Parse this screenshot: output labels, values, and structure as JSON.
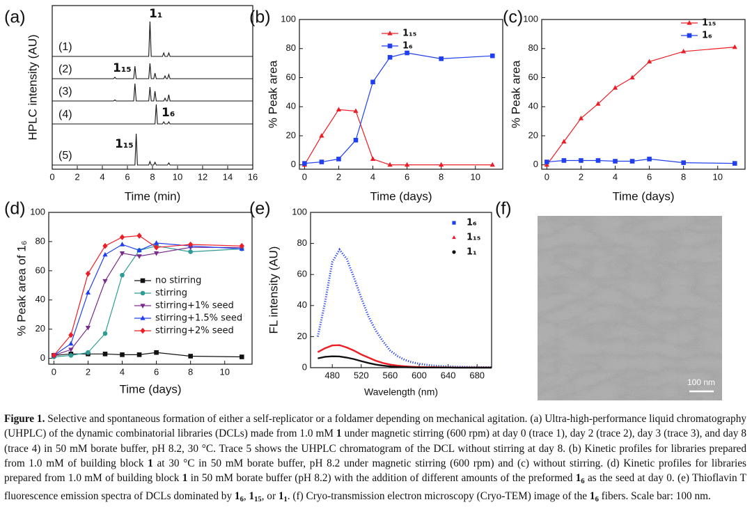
{
  "chart_data": [
    {
      "type": "line",
      "panel_label": "(a)",
      "xlabel": "Time (min)",
      "ylabel": "HPLC intensity (AU)",
      "xlim": [
        0,
        16
      ],
      "xticks": [
        0,
        2,
        4,
        6,
        8,
        10,
        12,
        14,
        16
      ],
      "series": [
        {
          "name": "(1)",
          "color": "#111111",
          "x": [
            0,
            7.7,
            7.8,
            7.9,
            8.8,
            8.9,
            9.0,
            9.2,
            9.3,
            9.4,
            16
          ],
          "values": [
            0,
            0,
            50,
            0,
            0,
            5,
            0,
            0,
            5,
            0,
            0
          ]
        },
        {
          "name": "(2)",
          "color": "#111111",
          "x": [
            0,
            4.9,
            5.0,
            5.1,
            6.5,
            6.6,
            6.7,
            7.7,
            7.8,
            7.9,
            8.1,
            8.2,
            8.3,
            8.9,
            9.0,
            9.1,
            9.2,
            9.3,
            9.4,
            16
          ],
          "values": [
            0,
            0,
            2,
            0,
            0,
            18,
            0,
            0,
            22,
            0,
            0,
            8,
            0,
            0,
            4,
            0,
            0,
            6,
            0,
            0
          ]
        },
        {
          "name": "(3)",
          "color": "#111111",
          "x": [
            0,
            4.9,
            5.0,
            5.1,
            6.5,
            6.6,
            6.7,
            7.7,
            7.8,
            7.9,
            8.1,
            8.2,
            8.3,
            8.9,
            9.0,
            9.1,
            9.2,
            9.3,
            9.4,
            16
          ],
          "values": [
            0,
            0,
            1.5,
            0,
            0,
            25,
            0,
            0,
            20,
            0,
            0,
            14,
            0,
            0,
            4,
            0,
            0,
            9,
            0,
            0
          ]
        },
        {
          "name": "(4)",
          "color": "#111111",
          "x": [
            0,
            8.2,
            8.3,
            8.4,
            8.8,
            8.9,
            9.0,
            9.2,
            9.3,
            9.4,
            16
          ],
          "values": [
            0,
            0,
            28,
            0,
            0,
            3,
            0,
            0,
            3,
            0,
            0
          ]
        },
        {
          "name": "(5)",
          "color": "#111111",
          "x": [
            0,
            6.6,
            6.7,
            6.8,
            7.7,
            7.8,
            7.9,
            8.1,
            8.2,
            8.3,
            9.2,
            9.3,
            9.4,
            16
          ],
          "values": [
            0,
            0,
            45,
            0,
            0,
            5,
            0,
            0,
            4,
            0,
            0,
            3,
            0,
            0
          ]
        }
      ],
      "annotations": [
        "1₁",
        "1₁₅",
        "1₆",
        "1₁₅"
      ]
    },
    {
      "type": "line",
      "panel_label": "(b)",
      "xlabel": "Time (days)",
      "ylabel": "% Peak area",
      "xlim": [
        -0.3,
        11.6
      ],
      "xticks": [
        0,
        2,
        4,
        6,
        8,
        10
      ],
      "ylim": [
        -3,
        100
      ],
      "yticks": [
        0,
        20,
        40,
        60,
        80,
        100
      ],
      "x": [
        0,
        1,
        2,
        3,
        4,
        5,
        6,
        8,
        11
      ],
      "series": [
        {
          "name": "1₁₅",
          "color": "#ee1c25",
          "marker": "triangle",
          "values": [
            0,
            20,
            38,
            37,
            4,
            0,
            0,
            0,
            0
          ]
        },
        {
          "name": "1₆",
          "color": "#1f3ff0",
          "marker": "square",
          "values": [
            1,
            2,
            4,
            17,
            57,
            74,
            77,
            73,
            75
          ]
        }
      ]
    },
    {
      "type": "line",
      "panel_label": "(c)",
      "xlabel": "Time (days)",
      "ylabel": "% Peak area",
      "xlim": [
        -0.3,
        11.6
      ],
      "xticks": [
        0,
        2,
        4,
        6,
        8,
        10
      ],
      "ylim": [
        -3,
        100
      ],
      "yticks": [
        0,
        20,
        40,
        60,
        80,
        100
      ],
      "x": [
        0,
        1,
        2,
        3,
        4,
        5,
        6,
        8,
        11
      ],
      "series": [
        {
          "name": "1₁₅",
          "color": "#ee1c25",
          "marker": "triangle",
          "values": [
            0,
            16,
            32,
            42,
            53,
            60,
            71,
            78,
            81
          ]
        },
        {
          "name": "1₆",
          "color": "#1f3ff0",
          "marker": "square",
          "values": [
            2,
            3,
            3,
            3,
            2.5,
            2.5,
            4,
            1.5,
            1
          ]
        }
      ]
    },
    {
      "type": "line",
      "panel_label": "(d)",
      "xlabel": "Time (days)",
      "ylabel": "% Peak area of 1₆",
      "xlim": [
        -0.3,
        11.6
      ],
      "xticks": [
        0,
        2,
        4,
        6,
        8,
        10
      ],
      "ylim": [
        -4,
        100
      ],
      "yticks": [
        0,
        20,
        40,
        60,
        80,
        100
      ],
      "x": [
        0,
        1,
        2,
        3,
        4,
        5,
        6,
        8,
        11
      ],
      "series": [
        {
          "name": "no stirring",
          "color": "#111111",
          "marker": "square",
          "values": [
            2,
            3,
            3,
            3,
            2.5,
            2.5,
            4,
            1.5,
            1
          ]
        },
        {
          "name": "stirring",
          "color": "#2e9c94",
          "marker": "circle",
          "values": [
            1,
            2,
            4,
            17,
            57,
            74,
            77,
            73,
            75
          ]
        },
        {
          "name": "stirring+1% seed",
          "color": "#7a2a8c",
          "marker": "triangle-down",
          "values": [
            2,
            6,
            21,
            53,
            72,
            70,
            72,
            76,
            76
          ]
        },
        {
          "name": "stirring+1.5% seed",
          "color": "#1f3ff0",
          "marker": "triangle",
          "values": [
            2,
            10,
            45,
            71,
            78,
            74,
            79,
            77,
            75
          ]
        },
        {
          "name": "stirring+2% seed",
          "color": "#ee1c25",
          "marker": "diamond",
          "values": [
            2,
            16,
            58,
            77,
            83,
            84,
            76,
            78,
            77
          ]
        }
      ]
    },
    {
      "type": "line",
      "panel_label": "(e)",
      "xlabel": "Wavelength (nm)",
      "ylabel": "FL intensity (AU)",
      "xlim": [
        450,
        700
      ],
      "xticks": [
        480,
        520,
        560,
        600,
        640,
        680
      ],
      "ylim": [
        0,
        100
      ],
      "yticks": [
        0,
        20,
        40,
        60,
        80,
        100
      ],
      "x": [
        460,
        470,
        480,
        490,
        500,
        510,
        520,
        530,
        540,
        550,
        560,
        570,
        580,
        590,
        600,
        610,
        620,
        630,
        640,
        650,
        660,
        670,
        680,
        690,
        700
      ],
      "series": [
        {
          "name": "1₆",
          "color": "#1f3ff0",
          "marker": "square",
          "line_style": "dotted",
          "values": [
            20,
            42,
            68,
            76,
            70,
            58,
            45,
            33,
            24,
            17,
            11,
            7.5,
            5,
            3.5,
            2.5,
            1.8,
            1.3,
            1,
            0.8,
            0.6,
            0.5,
            0.4,
            0.3,
            0.3,
            0.2
          ]
        },
        {
          "name": "1₁₅",
          "color": "#ee1c25",
          "marker": "triangle",
          "line_style": "solid",
          "values": [
            10,
            12.5,
            14.3,
            14.5,
            13,
            11,
            8.5,
            6.5,
            4.5,
            3,
            2,
            1.3,
            0.9,
            0.6,
            0.4,
            0.3,
            0.3,
            0.2,
            0.2,
            0.1,
            0.1,
            0.1,
            0.1,
            0.1,
            0.1
          ]
        },
        {
          "name": "1₁",
          "color": "#111111",
          "marker": "circle",
          "line_style": "solid",
          "values": [
            6,
            7,
            7.3,
            7.2,
            6.5,
            5.5,
            4.2,
            3,
            2,
            1.3,
            0.8,
            0.5,
            0.3,
            0.2,
            0.1,
            0.1,
            0.1,
            0.1,
            0.1,
            0,
            0,
            0,
            0,
            0,
            0
          ]
        }
      ]
    }
  ],
  "image": {
    "panel_label": "(f)",
    "scale_bar": "100 nm"
  },
  "caption": [
    {
      "text": "Figure 1.",
      "bold": true
    },
    {
      "text": " Selective and spontaneous formation of either a self-replicator or a foldamer depending on mechanical agitation. (a) Ultra-high-performance liquid chromatography (UHPLC) of the dynamic combinatorial libraries (DCLs) made from 1.0 mM "
    },
    {
      "text": "1",
      "bold": true
    },
    {
      "text": " under magnetic stirring (600 rpm) at day 0 (trace 1), day 2 (trace 2), day 3 (trace 3), and day 8 (trace 4) in 50 mM borate buffer, pH 8.2, 30 °C. Trace 5 shows the UHPLC chromatogram of the DCL without stirring at day 8. (b) Kinetic profiles for libraries prepared from 1.0 mM of building block "
    },
    {
      "text": "1",
      "bold": true
    },
    {
      "text": " at 30 °C in 50 mM borate buffer, pH 8.2 under magnetic stirring (600 rpm) and (c) without stirring. (d) Kinetic profiles for libraries prepared from 1.0 mM of building block "
    },
    {
      "text": "1",
      "bold": true
    },
    {
      "text": " in 50 mM borate buffer (pH 8.2) with the addition of different amounts of the preformed "
    },
    {
      "text": "1",
      "bold": true
    },
    {
      "text": "6",
      "bold": true,
      "sub": true
    },
    {
      "text": " as the seed at day 0. (e) Thioflavin T fluorescence emission spectra of DCLs dominated by "
    },
    {
      "text": "1",
      "bold": true
    },
    {
      "text": "6",
      "bold": true,
      "sub": true
    },
    {
      "text": ", "
    },
    {
      "text": "1",
      "bold": true
    },
    {
      "text": "15",
      "bold": true,
      "sub": true
    },
    {
      "text": ", or "
    },
    {
      "text": "1",
      "bold": true
    },
    {
      "text": "1",
      "bold": true,
      "sub": true
    },
    {
      "text": ". (f) Cryo-transmission electron microscopy (Cryo-TEM) image of the "
    },
    {
      "text": "1",
      "bold": true
    },
    {
      "text": "6",
      "bold": true,
      "sub": true
    },
    {
      "text": " fibers. Scale bar: 100 nm."
    }
  ]
}
